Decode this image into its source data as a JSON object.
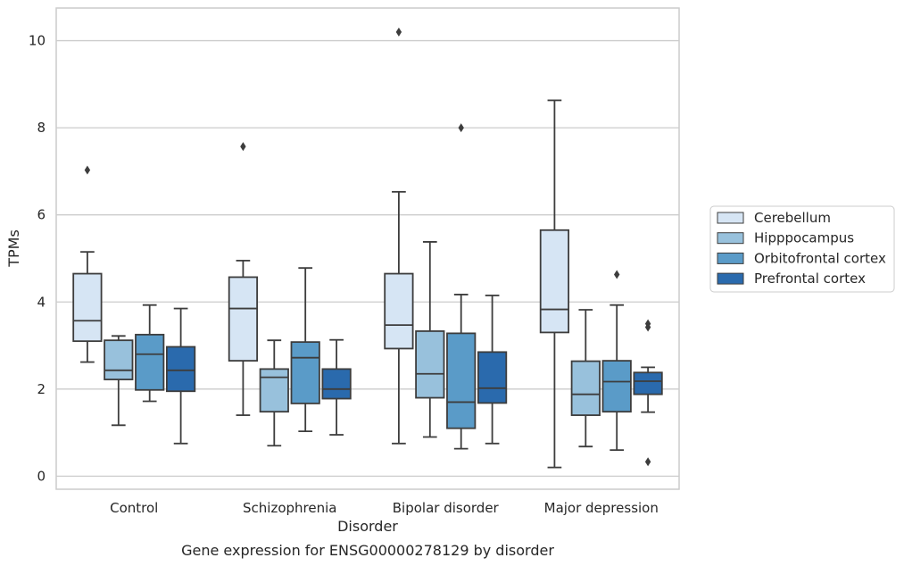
{
  "caption": "Gene expression for ENSG00000278129 by disorder",
  "chart_data": {
    "type": "box",
    "xlabel": "Disorder",
    "ylabel": "TPMs",
    "ylim": [
      -0.3,
      10.75
    ],
    "yticks": [
      0,
      2,
      4,
      6,
      8,
      10
    ],
    "grid": "horizontal",
    "legend_position": "right",
    "categories": [
      "Control",
      "Schizophrenia",
      "Bipolar disorder",
      "Major depression"
    ],
    "series": [
      {
        "name": "Cerebellum",
        "color": "#d6e5f4",
        "boxes": [
          {
            "whislo": 2.62,
            "q1": 3.1,
            "med": 3.57,
            "q3": 4.65,
            "whishi": 5.15,
            "fliers": [
              7.03
            ]
          },
          {
            "whislo": 1.4,
            "q1": 2.65,
            "med": 3.85,
            "q3": 4.57,
            "whishi": 4.95,
            "fliers": [
              7.57
            ]
          },
          {
            "whislo": 0.75,
            "q1": 2.93,
            "med": 3.47,
            "q3": 4.65,
            "whishi": 6.53,
            "fliers": [
              10.2
            ]
          },
          {
            "whislo": 0.2,
            "q1": 3.3,
            "med": 3.83,
            "q3": 5.65,
            "whishi": 8.63,
            "fliers": []
          }
        ]
      },
      {
        "name": "Hipppocampus",
        "color": "#98c1dc",
        "boxes": [
          {
            "whislo": 1.17,
            "q1": 2.22,
            "med": 2.43,
            "q3": 3.12,
            "whishi": 3.22,
            "fliers": []
          },
          {
            "whislo": 0.7,
            "q1": 1.48,
            "med": 2.27,
            "q3": 2.46,
            "whishi": 3.12,
            "fliers": []
          },
          {
            "whislo": 0.9,
            "q1": 1.8,
            "med": 2.35,
            "q3": 3.33,
            "whishi": 5.38,
            "fliers": []
          },
          {
            "whislo": 0.68,
            "q1": 1.4,
            "med": 1.88,
            "q3": 2.64,
            "whishi": 3.82,
            "fliers": []
          }
        ]
      },
      {
        "name": "Orbitofrontal cortex",
        "color": "#5a9bc8",
        "boxes": [
          {
            "whislo": 1.72,
            "q1": 1.98,
            "med": 2.8,
            "q3": 3.25,
            "whishi": 3.93,
            "fliers": []
          },
          {
            "whislo": 1.03,
            "q1": 1.67,
            "med": 2.72,
            "q3": 3.08,
            "whishi": 4.78,
            "fliers": []
          },
          {
            "whislo": 0.63,
            "q1": 1.1,
            "med": 1.7,
            "q3": 3.28,
            "whishi": 4.17,
            "fliers": [
              8.0
            ]
          },
          {
            "whislo": 0.6,
            "q1": 1.48,
            "med": 2.17,
            "q3": 2.65,
            "whishi": 3.93,
            "fliers": [
              4.63
            ]
          }
        ]
      },
      {
        "name": "Prefrontal cortex",
        "color": "#2a6aad",
        "boxes": [
          {
            "whislo": 0.75,
            "q1": 1.95,
            "med": 2.43,
            "q3": 2.97,
            "whishi": 3.85,
            "fliers": []
          },
          {
            "whislo": 0.95,
            "q1": 1.78,
            "med": 2.0,
            "q3": 2.46,
            "whishi": 3.13,
            "fliers": []
          },
          {
            "whislo": 0.75,
            "q1": 1.68,
            "med": 2.02,
            "q3": 2.85,
            "whishi": 4.15,
            "fliers": []
          },
          {
            "whislo": 1.47,
            "q1": 1.88,
            "med": 2.18,
            "q3": 2.38,
            "whishi": 2.5,
            "fliers": [
              3.5,
              3.42,
              0.33
            ]
          }
        ]
      }
    ]
  }
}
